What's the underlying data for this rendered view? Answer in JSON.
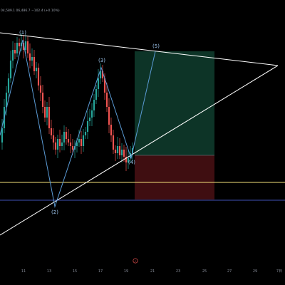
{
  "header": {
    "ohlc_text": "04,589.1 06,486.7 −102.4 (+0.10%)"
  },
  "wave_labels": [
    "(1)",
    "(2)",
    "(3)",
    "(4)",
    "(5)"
  ],
  "x_axis": {
    "ticks": [
      "11",
      "13",
      "15",
      "17",
      "19",
      "21",
      "23",
      "25",
      "27",
      "29",
      "7日"
    ]
  },
  "replay_icon": "⚡",
  "colors": {
    "background": "#000000",
    "candle_up": "#26a69a",
    "candle_down": "#ef5350",
    "trendline": "#ffffff",
    "wave_line": "#5b9bd5",
    "wave_label": "#9ec7f0",
    "horizontal_yellow": "#f5e27a",
    "horizontal_blue": "#3f51b5",
    "profit_zone": "#0f3d2e",
    "loss_zone": "#4a1114"
  }
}
